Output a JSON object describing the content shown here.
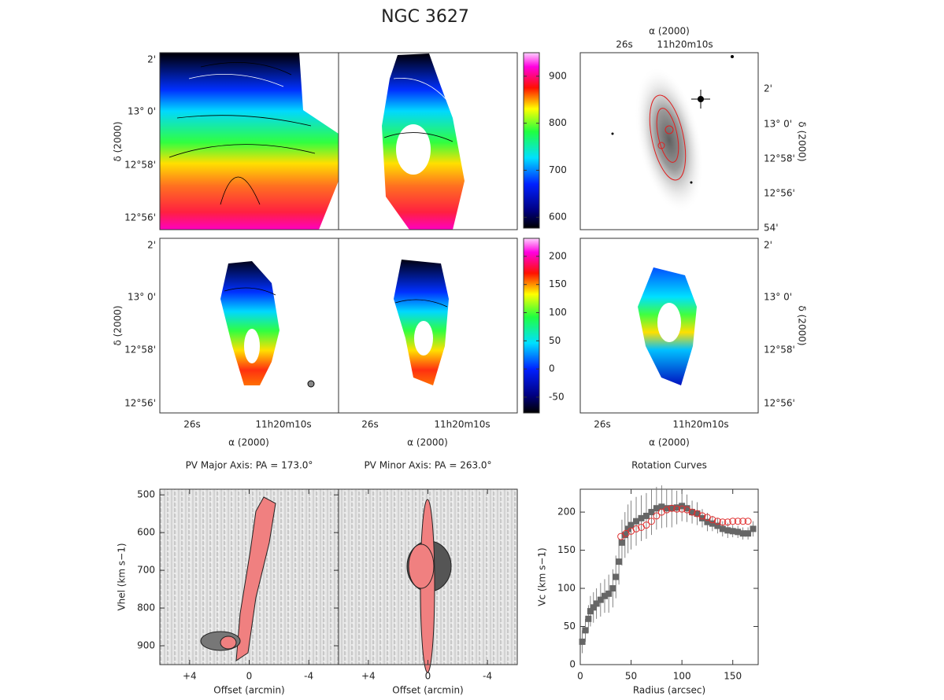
{
  "title": "NGC 3627",
  "maps": {
    "dec_label": "δ (2000)",
    "ra_label": "α (2000)",
    "dec_ticks": [
      "2'",
      "13° 0'",
      "12°58'",
      "12°56'"
    ],
    "dec_ticks_right": [
      "2'",
      "13° 0'",
      "12°58'",
      "12°56'",
      "54'"
    ],
    "ra_ticks": [
      "26s",
      "11h20m10s"
    ]
  },
  "chart_data": [
    {
      "type": "colorbar",
      "ylim": [
        577,
        950
      ],
      "yticks": [
        600,
        700,
        800,
        900
      ]
    },
    {
      "type": "colorbar",
      "ylim": [
        -78,
        232
      ],
      "yticks": [
        -50,
        0,
        50,
        100,
        150,
        200
      ]
    },
    {
      "type": "image",
      "title": "PV Major Axis: PA = 173.0°",
      "xlabel": "Offset (arcmin)",
      "ylabel": "Vhel (km s−1)",
      "xlim": [
        6,
        -6
      ],
      "xticks": [
        {
          "value": 4,
          "label": "+4"
        },
        0,
        -4
      ],
      "ylim": [
        950,
        485
      ],
      "yticks": [
        500,
        600,
        700,
        800,
        900
      ]
    },
    {
      "type": "image",
      "title": "PV Minor Axis: PA = 263.0°",
      "xlabel": "Offset (arcmin)",
      "xlim": [
        6,
        -6
      ],
      "xticks": [
        {
          "value": 4,
          "label": "+4"
        },
        0,
        -4
      ]
    },
    {
      "type": "scatter",
      "title": "Rotation Curves",
      "xlabel": "Radius (arcsec)",
      "ylabel": "Vc (km s−1)",
      "xlim": [
        0,
        175
      ],
      "xticks": [
        0,
        50,
        100,
        150
      ],
      "ylim": [
        0,
        230
      ],
      "yticks": [
        0,
        50,
        100,
        150,
        200
      ],
      "series": [
        {
          "color": "#666666",
          "marker": "square",
          "x": [
            2,
            5,
            8,
            10,
            13,
            16,
            20,
            24,
            28,
            32,
            35,
            38,
            41,
            44,
            47,
            50,
            55,
            60,
            65,
            70,
            75,
            80,
            85,
            90,
            95,
            100,
            105,
            110,
            115,
            120,
            125,
            130,
            135,
            140,
            145,
            150,
            155,
            160,
            165,
            170
          ],
          "values": [
            30,
            45,
            60,
            70,
            75,
            80,
            85,
            90,
            93,
            100,
            115,
            135,
            160,
            170,
            178,
            183,
            188,
            192,
            195,
            200,
            205,
            207,
            205,
            205,
            206,
            208,
            205,
            200,
            198,
            192,
            187,
            185,
            182,
            178,
            176,
            175,
            174,
            172,
            172,
            178
          ],
          "errors": [
            15,
            15,
            18,
            20,
            20,
            20,
            22,
            22,
            25,
            25,
            28,
            30,
            30,
            30,
            32,
            32,
            32,
            30,
            30,
            30,
            28,
            28,
            25,
            25,
            22,
            20,
            18,
            15,
            15,
            12,
            12,
            10,
            10,
            10,
            10,
            8,
            8,
            8,
            8,
            10
          ]
        },
        {
          "color": "#e03030",
          "marker": "circle",
          "x": [
            40,
            45,
            50,
            55,
            60,
            65,
            70,
            75,
            80,
            85,
            90,
            95,
            100,
            105,
            110,
            115,
            120,
            125,
            130,
            135,
            140,
            145,
            150,
            155,
            160,
            165
          ],
          "values": [
            168,
            172,
            175,
            178,
            180,
            183,
            188,
            195,
            200,
            203,
            205,
            204,
            204,
            203,
            200,
            198,
            195,
            193,
            190,
            188,
            187,
            187,
            188,
            188,
            188,
            188
          ]
        }
      ]
    }
  ]
}
